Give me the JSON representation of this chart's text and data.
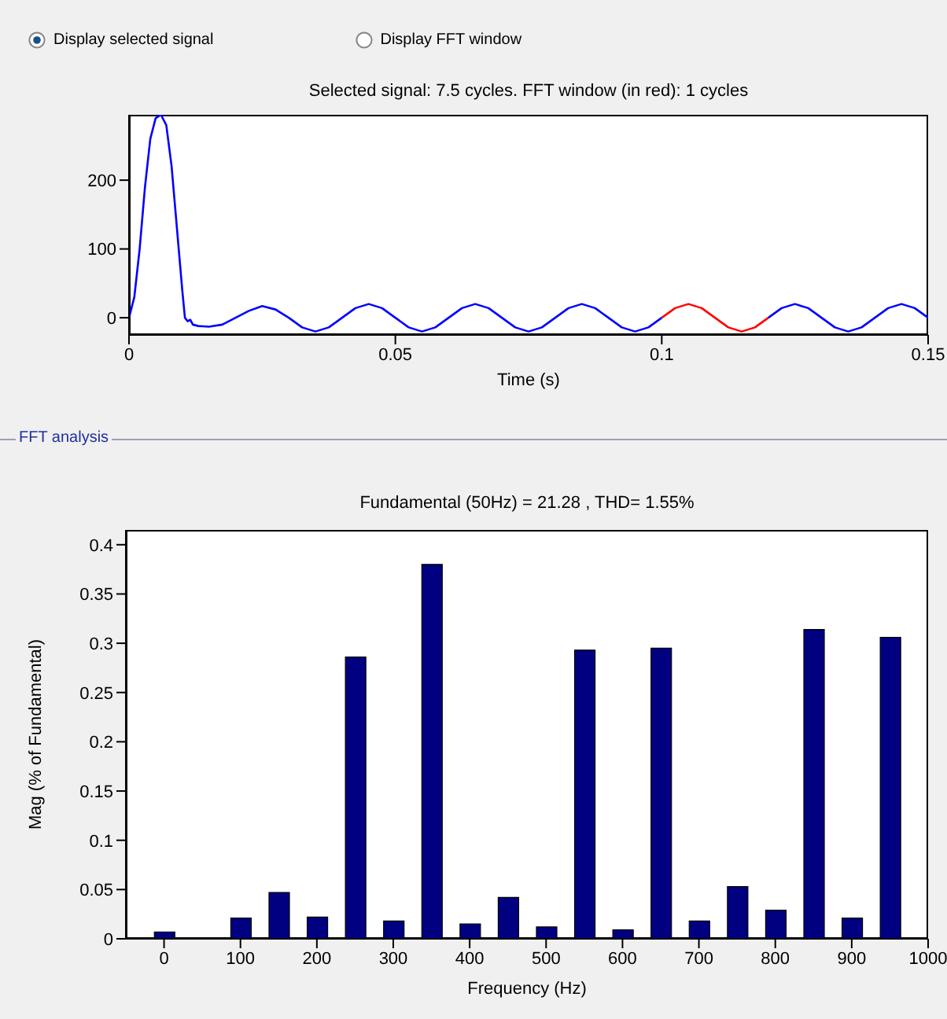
{
  "chart_data": [
    {
      "type": "line",
      "title": "Selected signal: 7.5 cycles. FFT window (in red): 1 cycles",
      "xlabel": "Time (s)",
      "annotations": [
        "Display selected signal",
        "Display FFT window"
      ],
      "xlim": [
        0,
        0.15
      ],
      "ylim": [
        -25,
        295
      ],
      "xticks": [
        0,
        0.05,
        0.1,
        0.15
      ],
      "yticks": [
        0,
        100,
        200
      ],
      "series": [
        {
          "color": "#0000ff",
          "x": [
            0,
            0.001,
            0.002,
            0.003,
            0.004,
            0.005,
            0.006,
            0.007,
            0.008,
            0.009,
            0.01,
            0.0105,
            0.011,
            0.0115,
            0.012,
            0.013,
            0.015,
            0.0175,
            0.02,
            0.0225,
            0.025,
            0.0275,
            0.03,
            0.0325,
            0.035,
            0.0375,
            0.04,
            0.0425,
            0.045,
            0.0475,
            0.05,
            0.0525,
            0.055,
            0.0575,
            0.06,
            0.0625,
            0.065,
            0.0675,
            0.07,
            0.0725,
            0.075,
            0.0775,
            0.08,
            0.0825,
            0.085,
            0.0875,
            0.09,
            0.0925,
            0.095,
            0.0975,
            0.1,
            0.11,
            0.12,
            0.1225,
            0.125,
            0.1275,
            0.13,
            0.1325,
            0.135,
            0.1375,
            0.14,
            0.1425,
            0.145,
            0.1475,
            0.15
          ],
          "values": [
            0,
            30,
            100,
            190,
            260,
            290,
            295,
            280,
            220,
            130,
            40,
            0,
            -5,
            -3,
            -10,
            -12,
            -13,
            -10,
            0,
            10,
            17,
            12,
            0,
            -14,
            -20,
            -14,
            0,
            14,
            20,
            14,
            0,
            -14,
            -20,
            -14,
            0,
            14,
            20,
            14,
            0,
            -14,
            -20,
            -14,
            0,
            14,
            20,
            14,
            0,
            -14,
            -20,
            -14,
            0,
            null,
            0,
            14,
            20,
            14,
            0,
            -14,
            -20,
            -14,
            0,
            14,
            20,
            14,
            0
          ]
        },
        {
          "color": "#ff0000",
          "x": [
            0.1,
            0.1025,
            0.105,
            0.1075,
            0.11,
            0.1125,
            0.115,
            0.1175,
            0.12
          ],
          "values": [
            0,
            14,
            20,
            14,
            0,
            -14,
            -20,
            -14,
            0
          ]
        }
      ]
    },
    {
      "type": "bar",
      "title": "Fundamental (50Hz) = 21.28 , THD= 1.55%",
      "xlabel": "Frequency (Hz)",
      "ylabel": "Mag (% of Fundamental)",
      "annotations": [
        "FFT analysis"
      ],
      "xlim": [
        -50,
        1000
      ],
      "ylim": [
        0,
        0.415
      ],
      "xticks": [
        0,
        100,
        200,
        300,
        400,
        500,
        600,
        700,
        800,
        900,
        1000
      ],
      "yticks": [
        0,
        0.05,
        0.1,
        0.15,
        0.2,
        0.25,
        0.3,
        0.35,
        0.4
      ],
      "color": "#000080",
      "x": [
        0,
        50,
        100,
        150,
        200,
        250,
        300,
        350,
        400,
        450,
        500,
        550,
        600,
        650,
        700,
        750,
        800,
        850,
        900,
        950
      ],
      "values": [
        0.007,
        null,
        0.021,
        0.047,
        0.022,
        0.286,
        0.018,
        0.38,
        0.015,
        0.042,
        0.012,
        0.293,
        0.009,
        0.295,
        0.018,
        0.053,
        0.029,
        0.314,
        0.021,
        0.306
      ]
    }
  ]
}
